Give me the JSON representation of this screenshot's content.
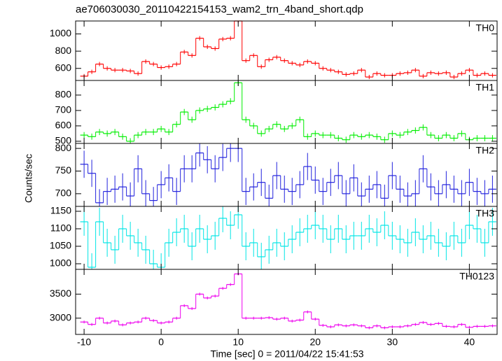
{
  "title": "ae706030030_20110422154153_wam2_trn_4band_short.qdp",
  "xlabel": "Time [sec] 0 = 2011/04/22 15:41:53",
  "ylabel": "Counts/sec",
  "x": [
    -10,
    -9,
    -8,
    -7,
    -6,
    -5,
    -4,
    -3,
    -2,
    -1,
    0,
    1,
    2,
    3,
    4,
    5,
    6,
    7,
    8,
    9,
    10,
    11,
    12,
    13,
    14,
    15,
    16,
    17,
    18,
    19,
    20,
    21,
    22,
    23,
    24,
    25,
    26,
    27,
    28,
    29,
    30,
    31,
    32,
    33,
    34,
    35,
    36,
    37,
    38,
    39,
    40,
    41,
    42,
    43
  ],
  "xlim": [
    -11.1,
    43.6
  ],
  "xticks": [
    -10,
    0,
    10,
    20,
    30,
    40
  ],
  "chart_data": [
    {
      "type": "step",
      "label": "TH0",
      "color": "#ff0000",
      "ylim": [
        460,
        1150
      ],
      "yticks": [
        600,
        800,
        1000
      ],
      "error": 25,
      "values": [
        510,
        560,
        650,
        600,
        580,
        580,
        570,
        540,
        680,
        650,
        610,
        620,
        650,
        790,
        750,
        950,
        850,
        830,
        940,
        950,
        1150,
        690,
        750,
        620,
        700,
        730,
        690,
        660,
        640,
        680,
        660,
        600,
        580,
        560,
        530,
        540,
        580,
        500,
        540,
        520,
        520,
        540,
        550,
        580,
        510,
        550,
        540,
        550,
        500,
        540,
        580,
        520,
        540,
        520
      ]
    },
    {
      "type": "step",
      "label": "TH1",
      "color": "#00ee00",
      "ylim": [
        486,
        895
      ],
      "yticks": [
        500,
        600,
        700,
        800
      ],
      "error": 20,
      "values": [
        540,
        530,
        560,
        550,
        560,
        530,
        500,
        540,
        560,
        560,
        580,
        560,
        610,
        690,
        640,
        700,
        710,
        720,
        740,
        760,
        880,
        640,
        600,
        550,
        580,
        610,
        580,
        600,
        640,
        530,
        550,
        540,
        540,
        520,
        510,
        540,
        530,
        540,
        530,
        510,
        550,
        540,
        560,
        570,
        590,
        540,
        520,
        540,
        520,
        550,
        510,
        520,
        520,
        520
      ]
    },
    {
      "type": "step",
      "label": "TH2",
      "color": "#2222dd",
      "ylim": [
        672,
        811
      ],
      "yticks": [
        700,
        750,
        800
      ],
      "error": 30,
      "values": [
        765,
        745,
        680,
        705,
        710,
        715,
        695,
        755,
        700,
        685,
        720,
        735,
        705,
        755,
        755,
        790,
        775,
        755,
        780,
        800,
        800,
        705,
        715,
        725,
        690,
        740,
        710,
        705,
        720,
        760,
        730,
        705,
        725,
        740,
        700,
        735,
        695,
        710,
        720,
        690,
        740,
        710,
        695,
        700,
        755,
        715,
        700,
        720,
        710,
        700,
        725,
        705,
        700,
        710
      ]
    },
    {
      "type": "step",
      "label": "TH3",
      "color": "#00e5e5",
      "ylim": [
        984,
        1164
      ],
      "yticks": [
        1000,
        1050,
        1100,
        1150
      ],
      "error": 40,
      "values": [
        1120,
        990,
        1120,
        1060,
        1040,
        1100,
        1080,
        1060,
        1040,
        1000,
        990,
        1060,
        1090,
        1100,
        1050,
        1100,
        1070,
        1080,
        1130,
        1110,
        1140,
        1050,
        1060,
        1020,
        1040,
        1060,
        1050,
        1070,
        1090,
        1100,
        1110,
        1100,
        1070,
        1100,
        1070,
        1080,
        1080,
        1100,
        1090,
        1110,
        1080,
        1070,
        1060,
        1090,
        1070,
        1080,
        1060,
        1050,
        1080,
        1060,
        1110,
        1100,
        1060,
        1120
      ]
    },
    {
      "type": "step",
      "label": "TH0123",
      "color": "#ee00ee",
      "ylim": [
        2662,
        4015
      ],
      "yticks": [
        3000,
        3500
      ],
      "error": 30,
      "values": [
        2920,
        2870,
        3000,
        2900,
        2940,
        2860,
        2900,
        2920,
        3000,
        2950,
        2900,
        2920,
        3000,
        3260,
        3200,
        3500,
        3420,
        3460,
        3620,
        3700,
        3920,
        3000,
        3000,
        3000,
        3010,
        2980,
        3000,
        2940,
        2960,
        3130,
        2980,
        2850,
        2820,
        2860,
        2840,
        2860,
        2840,
        2800,
        2840,
        2800,
        2820,
        2820,
        2840,
        2870,
        2910,
        2870,
        2890,
        2830,
        2820,
        2870,
        2810,
        2830,
        2830,
        2840
      ]
    }
  ]
}
